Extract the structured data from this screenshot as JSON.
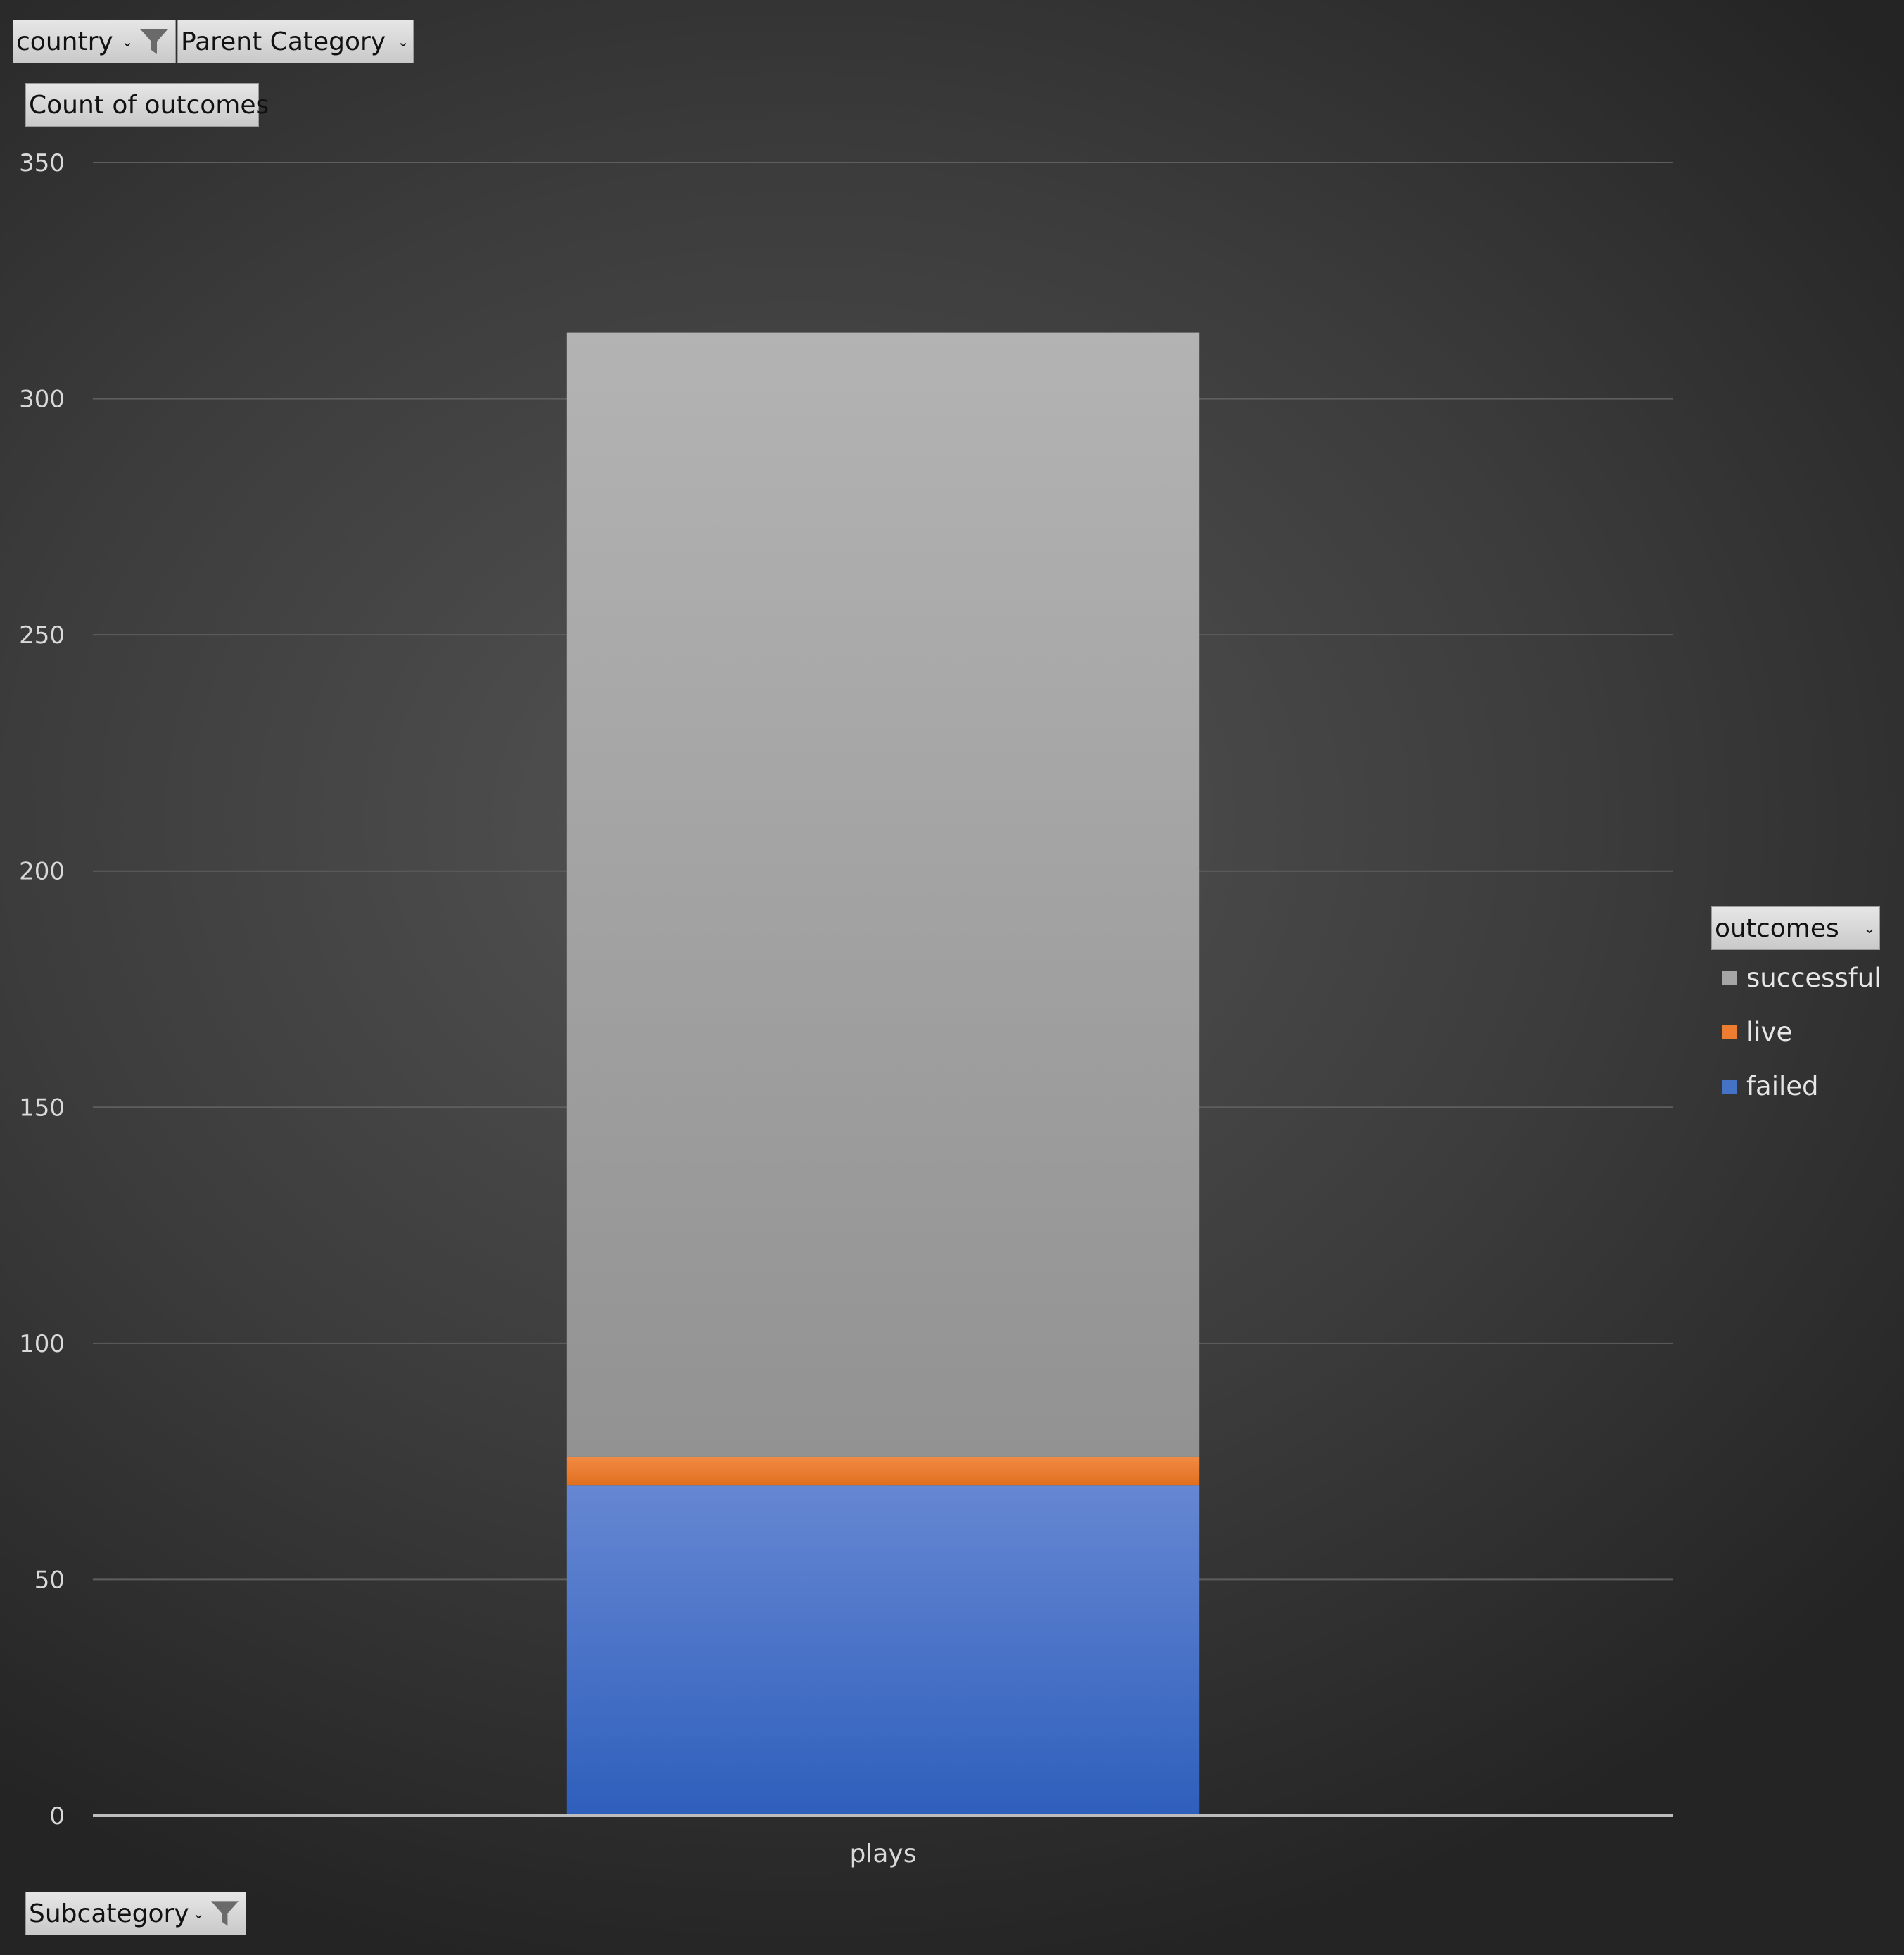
{
  "filters": {
    "country": "country",
    "parent_category": "Parent Category",
    "subcategory": "Subcategory"
  },
  "value_field": "Count of outcomes",
  "legend": {
    "field": "outcomes",
    "items": [
      {
        "label": "successful",
        "color": "#a6a6a6"
      },
      {
        "label": "live",
        "color": "#ed7d31"
      },
      {
        "label": "failed",
        "color": "#4472c4"
      }
    ]
  },
  "chart_data": {
    "type": "bar",
    "stacked": true,
    "categories": [
      "plays"
    ],
    "series": [
      {
        "name": "failed",
        "values": [
          70
        ],
        "color": "#4472c4"
      },
      {
        "name": "live",
        "values": [
          6
        ],
        "color": "#ed7d31"
      },
      {
        "name": "successful",
        "values": [
          238
        ],
        "color": "#a6a6a6"
      }
    ],
    "ylim": [
      0,
      350
    ],
    "yticks": [
      0,
      50,
      100,
      150,
      200,
      250,
      300,
      350
    ],
    "grid": true,
    "legend_position": "right"
  }
}
